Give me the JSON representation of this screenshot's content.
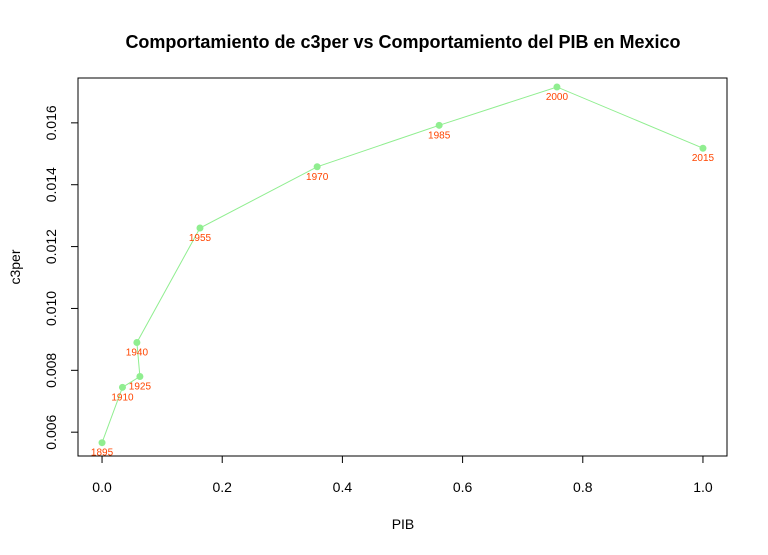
{
  "chart_data": {
    "type": "line",
    "title": "Comportamiento de c3per vs Comportamiento del PIB en Mexico",
    "xlabel": "PIB",
    "ylabel": "c3per",
    "xlim": [
      -0.04,
      1.04
    ],
    "ylim": [
      0.00523,
      0.01745
    ],
    "x_ticks": [
      0.0,
      0.2,
      0.4,
      0.6,
      0.8,
      1.0
    ],
    "x_tick_labels": [
      "0.0",
      "0.2",
      "0.4",
      "0.6",
      "0.8",
      "1.0"
    ],
    "y_ticks": [
      0.006,
      0.008,
      0.01,
      0.012,
      0.014,
      0.016
    ],
    "y_tick_labels": [
      "0.006",
      "0.008",
      "0.010",
      "0.012",
      "0.014",
      "0.016"
    ],
    "grid": false,
    "line_color": "#90ee90",
    "point_color": "#90ee90",
    "label_color": "#ff4500",
    "points": [
      {
        "label": "1895",
        "x": 0.0,
        "y": 0.00566
      },
      {
        "label": "1910",
        "x": 0.034,
        "y": 0.00745
      },
      {
        "label": "1925",
        "x": 0.063,
        "y": 0.0078
      },
      {
        "label": "1940",
        "x": 0.058,
        "y": 0.0089
      },
      {
        "label": "1955",
        "x": 0.163,
        "y": 0.0126
      },
      {
        "label": "1970",
        "x": 0.358,
        "y": 0.01458
      },
      {
        "label": "1985",
        "x": 0.561,
        "y": 0.01592
      },
      {
        "label": "2000",
        "x": 0.757,
        "y": 0.01716
      },
      {
        "label": "2015",
        "x": 1.0,
        "y": 0.01518
      }
    ]
  }
}
